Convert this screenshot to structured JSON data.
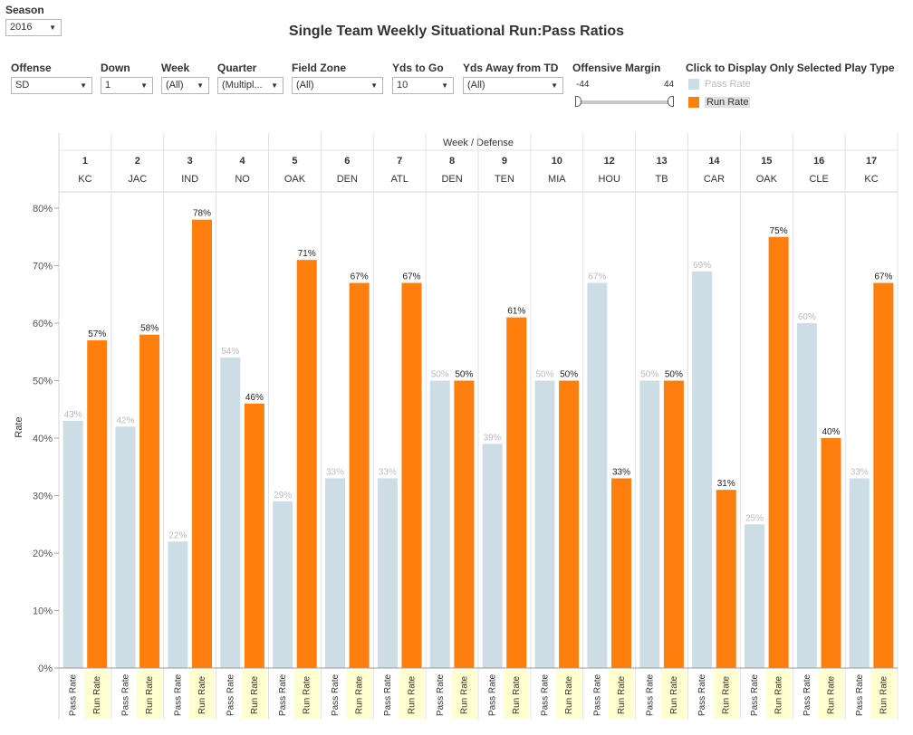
{
  "season": {
    "label": "Season",
    "value": "2016"
  },
  "title": "Single Team Weekly Situational Run:Pass Ratios",
  "filters": [
    {
      "label": "Offense",
      "value": "SD"
    },
    {
      "label": "Down",
      "value": "1"
    },
    {
      "label": "Week",
      "value": "(All)"
    },
    {
      "label": "Quarter",
      "value": "(Multipl..."
    },
    {
      "label": "Field Zone",
      "value": "(All)"
    },
    {
      "label": "Yds to Go",
      "value": "10"
    },
    {
      "label": "Yds Away from TD",
      "value": "(All)"
    }
  ],
  "margin": {
    "label": "Offensive Margin",
    "min": "-44",
    "max": "44"
  },
  "legend": {
    "title": "Click to Display Only Selected Play Type",
    "items": [
      {
        "label": "Pass Rate",
        "color": "#cddde6"
      },
      {
        "label": "Run Rate",
        "color": "#ff7f0e"
      }
    ]
  },
  "chart_data": {
    "type": "bar",
    "header": "Week  /  Defense",
    "ylabel": "Rate",
    "ylim": [
      0,
      80
    ],
    "yticks": [
      "0%",
      "10%",
      "20%",
      "30%",
      "40%",
      "50%",
      "60%",
      "70%",
      "80%"
    ],
    "series_labels": [
      "Pass Rate",
      "Run Rate"
    ],
    "colors": {
      "pass": "#cddde6",
      "run": "#ff7f0e"
    },
    "weeks": [
      {
        "week": "1",
        "defense": "KC",
        "pass": 43,
        "run": 57
      },
      {
        "week": "2",
        "defense": "JAC",
        "pass": 42,
        "run": 58
      },
      {
        "week": "3",
        "defense": "IND",
        "pass": 22,
        "run": 78
      },
      {
        "week": "4",
        "defense": "NO",
        "pass": 54,
        "run": 46
      },
      {
        "week": "5",
        "defense": "OAK",
        "pass": 29,
        "run": 71
      },
      {
        "week": "6",
        "defense": "DEN",
        "pass": 33,
        "run": 67
      },
      {
        "week": "7",
        "defense": "ATL",
        "pass": 33,
        "run": 67
      },
      {
        "week": "8",
        "defense": "DEN",
        "pass": 50,
        "run": 50
      },
      {
        "week": "9",
        "defense": "TEN",
        "pass": 39,
        "run": 61
      },
      {
        "week": "10",
        "defense": "MIA",
        "pass": 50,
        "run": 50
      },
      {
        "week": "12",
        "defense": "HOU",
        "pass": 67,
        "run": 33
      },
      {
        "week": "13",
        "defense": "TB",
        "pass": 50,
        "run": 50
      },
      {
        "week": "14",
        "defense": "CAR",
        "pass": 69,
        "run": 31
      },
      {
        "week": "15",
        "defense": "OAK",
        "pass": 25,
        "run": 75
      },
      {
        "week": "16",
        "defense": "CLE",
        "pass": 60,
        "run": 40
      },
      {
        "week": "17",
        "defense": "KC",
        "pass": 33,
        "run": 67
      }
    ]
  }
}
